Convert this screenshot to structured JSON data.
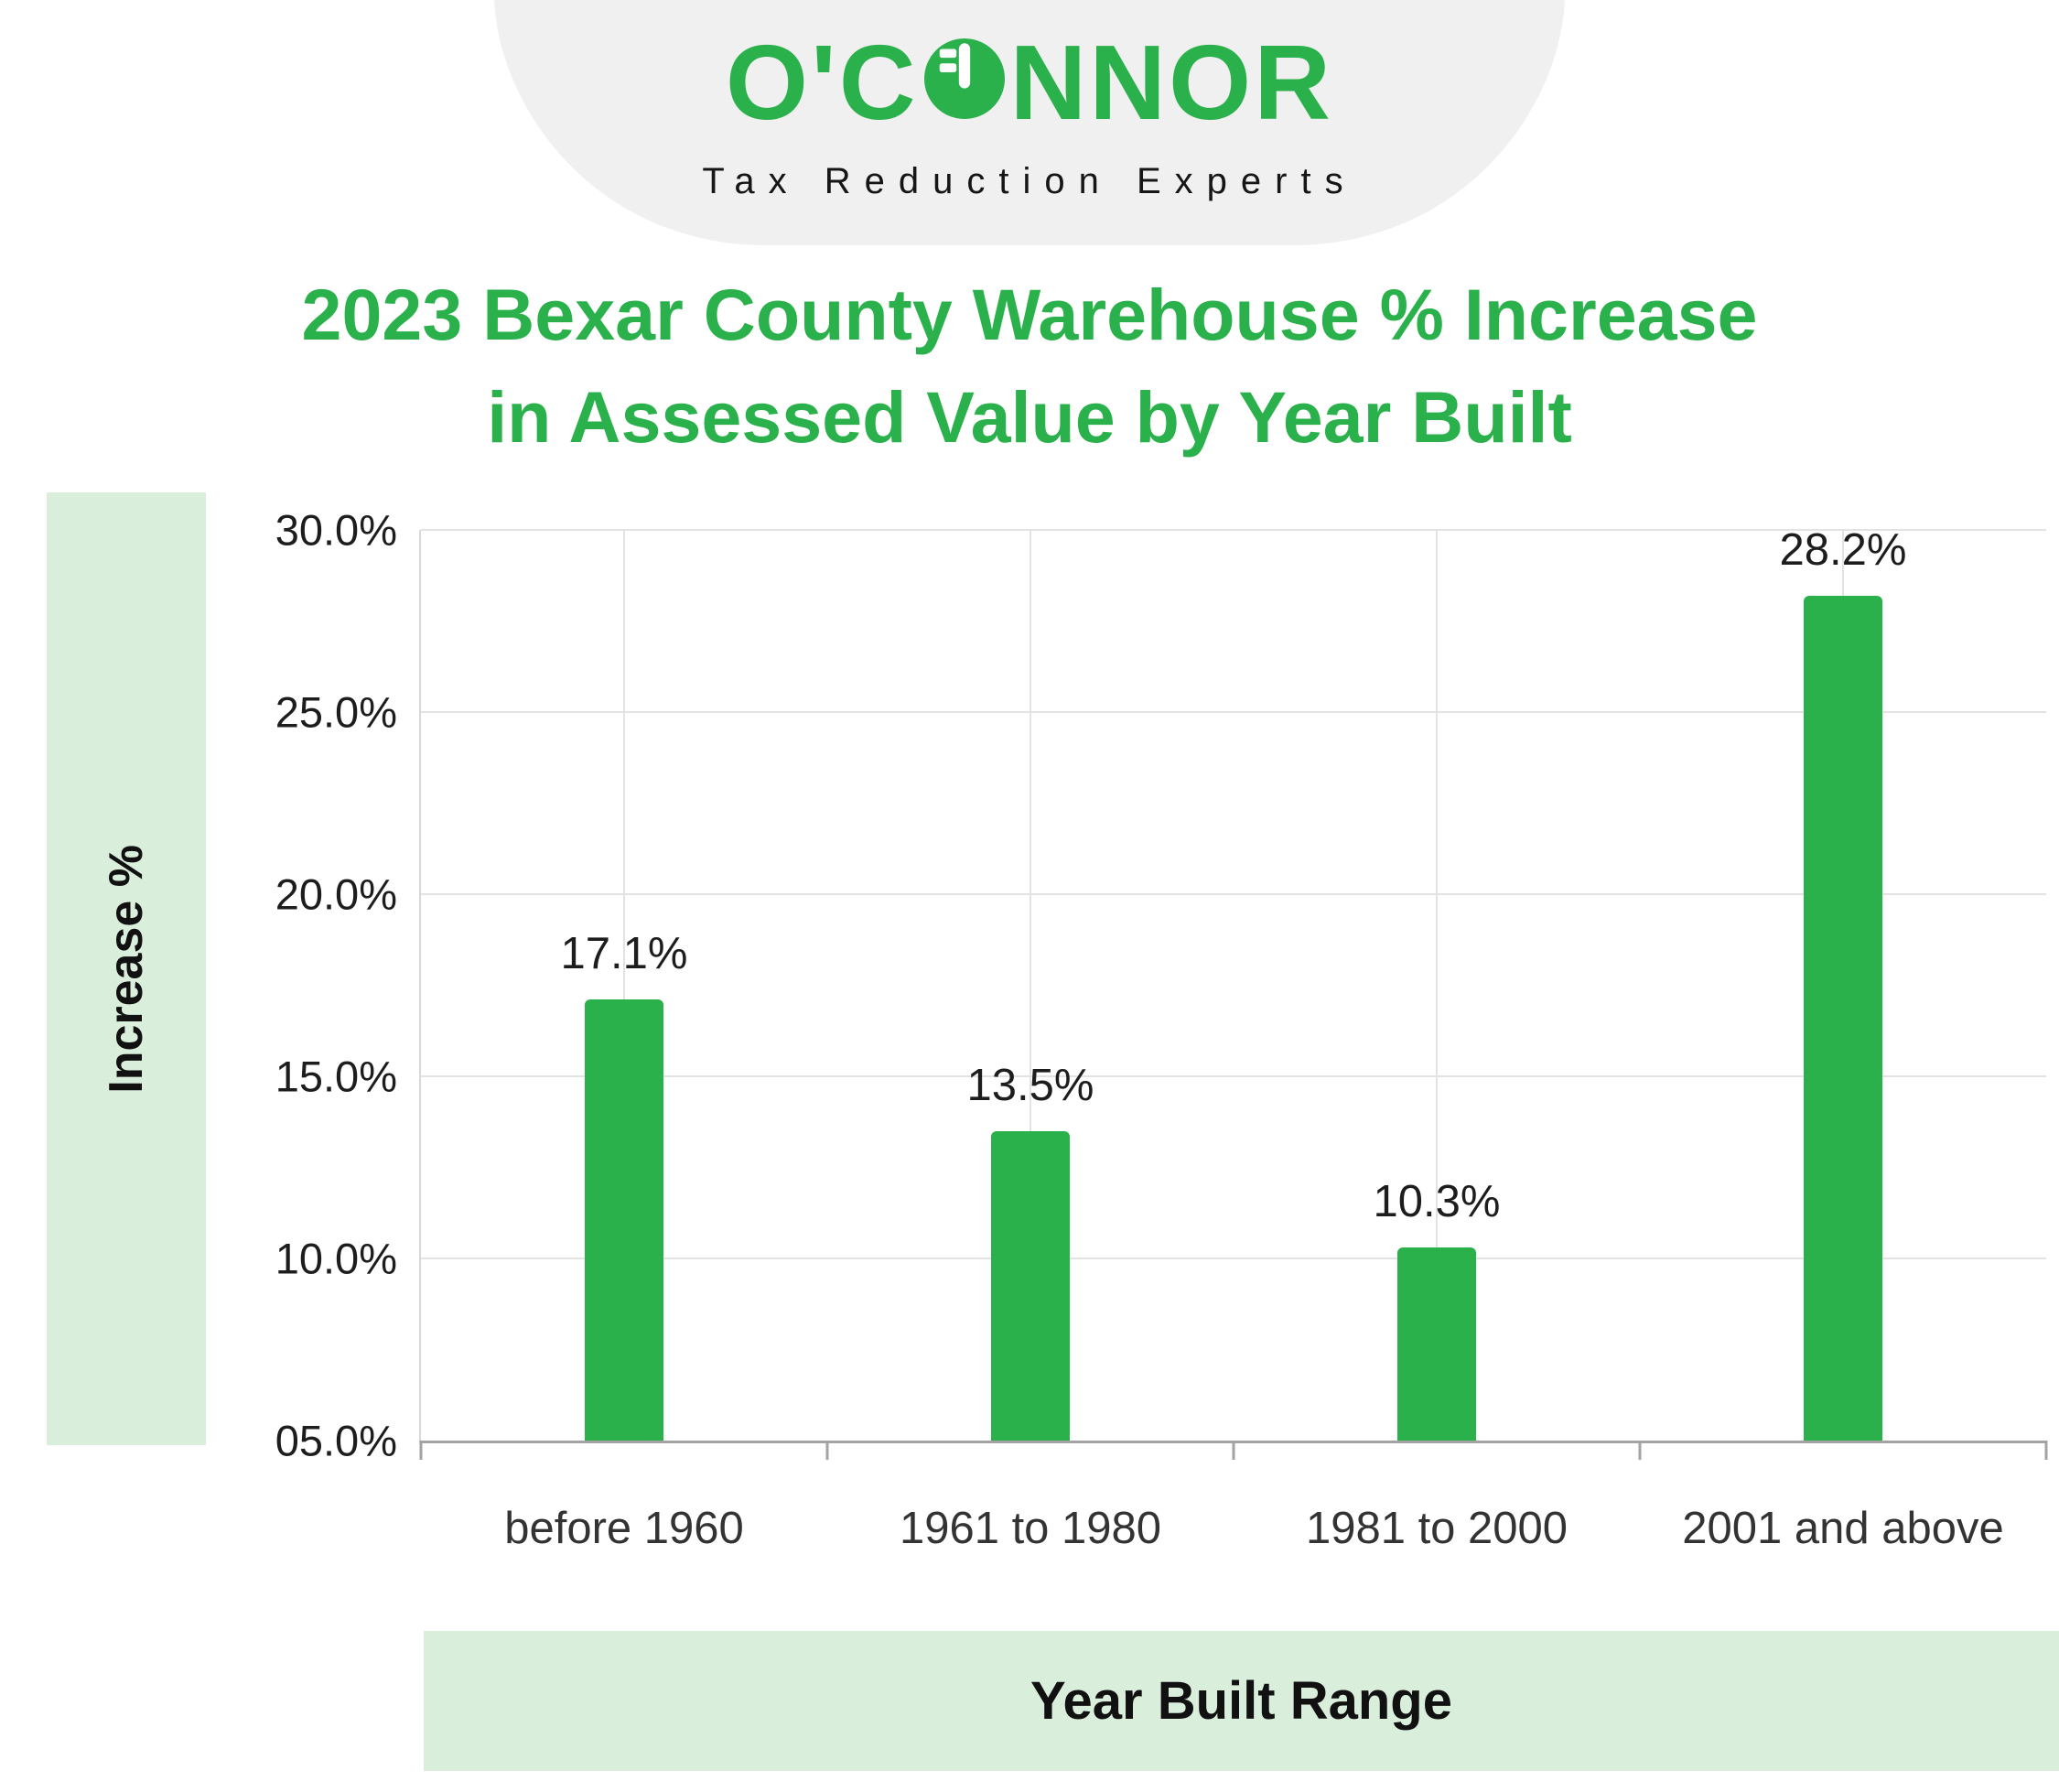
{
  "brand": {
    "logo_part1": "O'C",
    "logo_part2": "NNOR",
    "tagline": "Tax Reduction Experts"
  },
  "title": {
    "line1": "2023 Bexar County Warehouse % Increase",
    "line2": "in Assessed Value by Year Built"
  },
  "chart_data": {
    "type": "bar",
    "title": "2023 Bexar County Warehouse % Increase in Assessed Value by Year Built",
    "categories": [
      "before 1960",
      "1961 to 1980",
      "1981 to 2000",
      "2001 and above"
    ],
    "values": [
      17.1,
      13.5,
      10.3,
      28.2
    ],
    "value_labels": [
      "17.1%",
      "13.5%",
      "10.3%",
      "28.2%"
    ],
    "xlabel": "Year Built Range",
    "ylabel": "Increase %",
    "ylim": [
      5,
      30
    ],
    "y_ticks": [
      30,
      25,
      20,
      15,
      10,
      5
    ],
    "y_tick_labels": [
      "30.0%",
      "25.0%",
      "20.0%",
      "15.0%",
      "10.0%",
      "05.0%"
    ],
    "grid": true,
    "legend": false,
    "bar_color": "#2BB14B"
  },
  "colors": {
    "green": "#2BB14B",
    "light_green": "#D9EFDC",
    "banner_gray": "#F0F0F0",
    "gridline": "#E3E3E3",
    "axis": "#A3A3A3",
    "text_dark": "#1D1D1D"
  }
}
